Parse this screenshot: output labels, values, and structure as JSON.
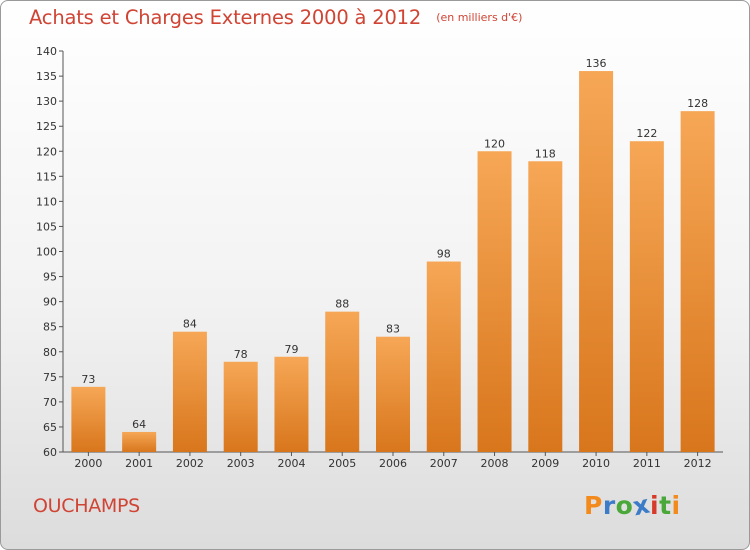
{
  "header": {
    "title": "Achats et Charges Externes 2000 à 2012",
    "unit": "(en milliers d'€)"
  },
  "footer": {
    "commune": "OUCHAMPS",
    "logo_text": "Proxiti"
  },
  "colors": {
    "title": "#d04434",
    "bar_light": "#f6a756",
    "bar_dark": "#d8761c",
    "logo_letters": [
      "#f28a1c",
      "#3b7bc8",
      "#4aa83a",
      "#3b7bc8",
      "#d63a2c",
      "#4aa83a",
      "#f28a1c"
    ]
  },
  "chart_data": {
    "type": "bar",
    "categories": [
      "2000",
      "2001",
      "2002",
      "2003",
      "2004",
      "2005",
      "2006",
      "2007",
      "2008",
      "2009",
      "2010",
      "2011",
      "2012"
    ],
    "values": [
      73,
      64,
      84,
      78,
      79,
      88,
      83,
      98,
      120,
      118,
      136,
      122,
      128
    ],
    "title": "Achats et Charges Externes 2000 à 2012",
    "xlabel": "",
    "ylabel": "",
    "ylim": [
      60,
      140
    ],
    "yticks": [
      60,
      65,
      70,
      75,
      80,
      85,
      90,
      95,
      100,
      105,
      110,
      115,
      120,
      125,
      130,
      135,
      140
    ],
    "grid": false,
    "data_labels": true
  }
}
